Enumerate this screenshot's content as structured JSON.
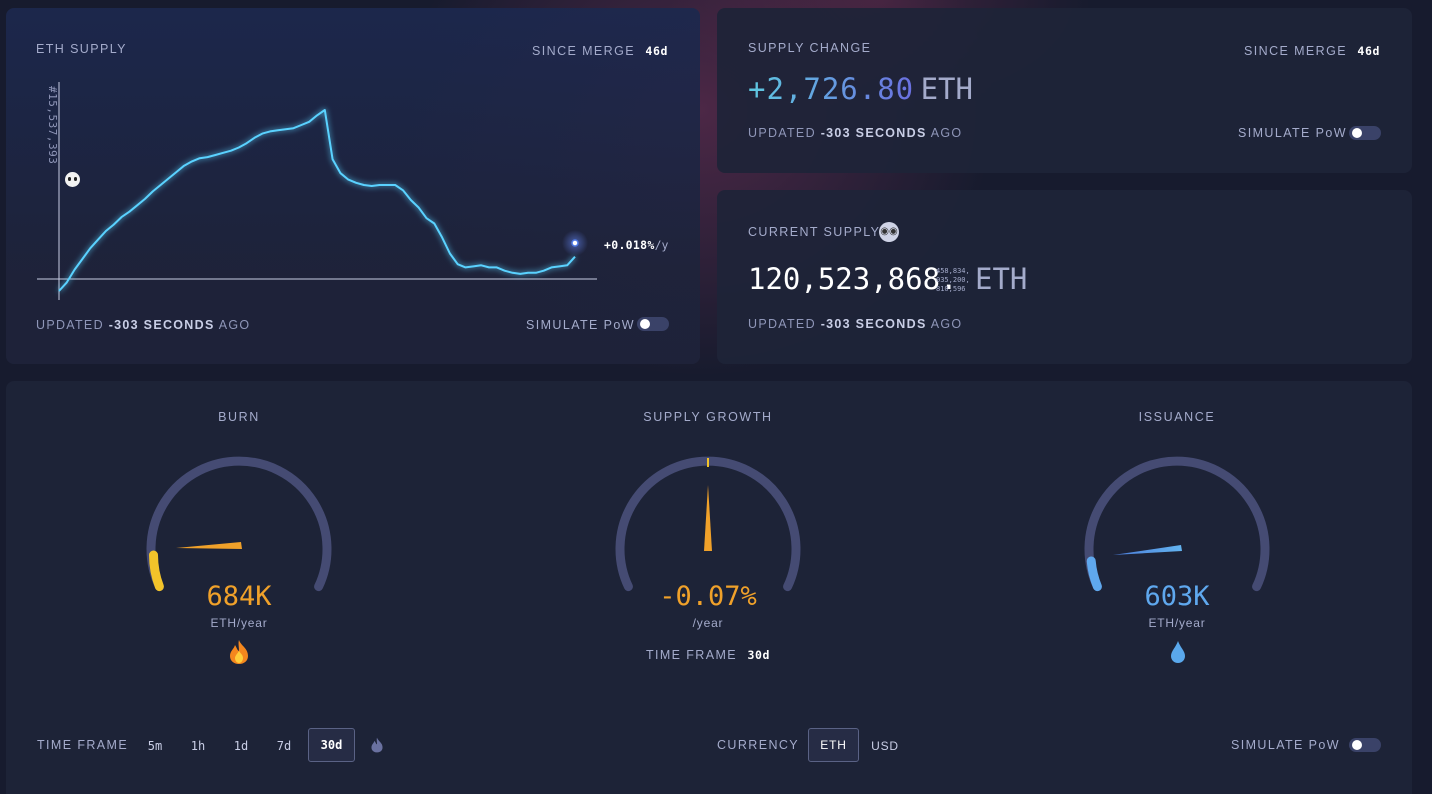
{
  "supply_card": {
    "title": "ETH SUPPLY",
    "since_label": "SINCE MERGE",
    "since_value": "46d",
    "block_label": "#15,537,393",
    "rate_value": "+0.018%",
    "rate_unit": "/y",
    "updated_prefix": "UPDATED",
    "updated_value": "-303 SECONDS",
    "updated_suffix": "AGO",
    "simulate_label": "SIMULATE PoW"
  },
  "change_card": {
    "title": "SUPPLY CHANGE",
    "since_label": "SINCE MERGE",
    "since_value": "46d",
    "value": "+2,726.80",
    "unit": "ETH",
    "updated_prefix": "UPDATED",
    "updated_value": "-303 SECONDS",
    "updated_suffix": "AGO",
    "simulate_label": "SIMULATE PoW"
  },
  "current_card": {
    "title": "CURRENT SUPPLY",
    "value": "120,523,868.",
    "decimals_1": "458,834,",
    "decimals_2": "035,200,",
    "decimals_3": "810,596",
    "unit": "ETH",
    "updated_prefix": "UPDATED",
    "updated_value": "-303 SECONDS",
    "updated_suffix": "AGO"
  },
  "gauges": {
    "burn": {
      "title": "BURN",
      "value": "684K",
      "unit": "ETH/year",
      "fraction": 0.13
    },
    "growth": {
      "title": "SUPPLY GROWTH",
      "value": "-0.07%",
      "unit": "/year",
      "tf_label": "TIME FRAME",
      "tf_value": "30d"
    },
    "issuance": {
      "title": "ISSUANCE",
      "value": "603K",
      "unit": "ETH/year",
      "fraction": 0.11
    }
  },
  "footer": {
    "tf_label": "TIME FRAME",
    "tf_options": [
      "5m",
      "1h",
      "1d",
      "7d",
      "30d"
    ],
    "tf_selected": "30d",
    "currency_label": "CURRENCY",
    "currency_options": [
      "ETH",
      "USD"
    ],
    "currency_selected": "ETH",
    "simulate_label": "SIMULATE PoW"
  },
  "colors": {
    "burn": "#f0a12a",
    "issuance": "#5fa8ee",
    "line": "#5ad2ff",
    "change_gradient_start": "#5ec9e0",
    "change_gradient_end": "#6b6fe0"
  },
  "chart_data": {
    "type": "line",
    "title": "ETH SUPPLY",
    "x_label": "",
    "y_label": "",
    "series": [
      {
        "values": [
          0,
          8,
          20,
          30,
          40,
          48,
          56,
          62,
          69,
          74,
          80,
          86,
          93,
          99,
          105,
          111,
          117,
          121,
          124,
          125,
          127,
          129,
          131,
          134,
          138,
          143,
          147,
          149,
          150,
          151,
          152,
          155,
          158,
          164,
          169,
          123,
          110,
          104,
          101,
          99,
          98,
          99,
          99,
          99,
          94,
          85,
          78,
          68,
          63,
          50,
          35,
          25,
          22,
          23,
          24,
          22,
          22,
          19,
          17,
          16,
          17,
          17,
          19,
          22,
          23,
          24,
          32
        ]
      }
    ]
  }
}
